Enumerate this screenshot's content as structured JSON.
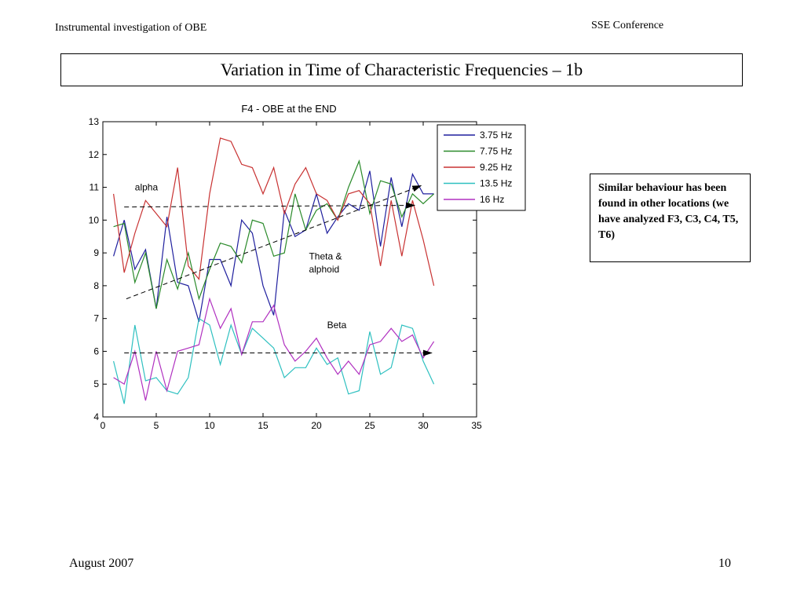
{
  "header": {
    "left": "Instrumental investigation of OBE",
    "right": "SSE Conference"
  },
  "slide_title": "Variation in Time of Characteristic Frequencies – 1b",
  "note": "Similar behaviour has been found in other locations (we have analyzed F3, C3, C4, T5, T6)",
  "footer": {
    "date": "August 2007",
    "page": "10"
  },
  "chart_data": {
    "type": "line",
    "title": "F4 - OBE at the END",
    "xlabel": "",
    "ylabel": "",
    "xlim": [
      0,
      35
    ],
    "ylim": [
      4,
      13
    ],
    "xticks": [
      0,
      5,
      10,
      15,
      20,
      25,
      30,
      35
    ],
    "yticks": [
      4,
      5,
      6,
      7,
      8,
      9,
      10,
      11,
      12,
      13
    ],
    "grid": false,
    "legend": "top-right",
    "x": [
      1,
      2,
      3,
      4,
      5,
      6,
      7,
      8,
      9,
      10,
      11,
      12,
      13,
      14,
      15,
      16,
      17,
      18,
      19,
      20,
      21,
      22,
      23,
      24,
      25,
      26,
      27,
      28,
      29,
      30,
      31
    ],
    "series": [
      {
        "name": "3.75 Hz",
        "color": "#1f1f9e",
        "values": [
          8.9,
          10.0,
          8.5,
          9.1,
          7.3,
          10.1,
          8.1,
          8.0,
          6.9,
          8.8,
          8.8,
          8.0,
          10.0,
          9.6,
          8.0,
          7.1,
          10.3,
          9.5,
          9.7,
          10.8,
          9.6,
          10.1,
          10.5,
          10.3,
          11.5,
          9.2,
          11.3,
          9.8,
          11.4,
          10.8,
          10.8
        ]
      },
      {
        "name": "7.75 Hz",
        "color": "#2a8a2a",
        "values": [
          9.8,
          9.9,
          8.1,
          9.0,
          7.3,
          8.8,
          7.9,
          9.0,
          7.6,
          8.5,
          9.3,
          9.2,
          8.7,
          10.0,
          9.9,
          8.9,
          9.0,
          10.8,
          9.7,
          10.3,
          10.5,
          10.0,
          11.0,
          11.8,
          10.2,
          11.2,
          11.1,
          10.1,
          10.8,
          10.5,
          10.8
        ]
      },
      {
        "name": "9.25 Hz",
        "color": "#c83232",
        "values": [
          10.8,
          8.4,
          9.6,
          10.6,
          10.2,
          9.8,
          11.6,
          8.6,
          8.2,
          10.8,
          12.5,
          12.4,
          11.7,
          11.6,
          10.8,
          11.6,
          10.2,
          11.1,
          11.6,
          10.8,
          10.6,
          10.0,
          10.8,
          10.9,
          10.5,
          8.6,
          10.6,
          8.9,
          10.6,
          9.4,
          8.0
        ]
      },
      {
        "name": "13.5 Hz",
        "color": "#2ec0c0",
        "values": [
          5.7,
          4.4,
          6.8,
          5.1,
          5.2,
          4.8,
          4.7,
          5.2,
          7.0,
          6.8,
          5.6,
          6.8,
          5.9,
          6.7,
          6.4,
          6.1,
          5.2,
          5.5,
          5.5,
          6.1,
          5.6,
          5.8,
          4.7,
          4.8,
          6.6,
          5.3,
          5.5,
          6.8,
          6.7,
          5.7,
          5.0
        ]
      },
      {
        "name": "16 Hz",
        "color": "#b030c0",
        "values": [
          5.2,
          5.0,
          6.0,
          4.5,
          6.0,
          4.8,
          6.0,
          6.1,
          6.2,
          7.6,
          6.7,
          7.3,
          5.9,
          6.9,
          6.9,
          7.4,
          6.2,
          5.7,
          6.0,
          6.4,
          5.8,
          5.3,
          5.7,
          5.3,
          6.2,
          6.3,
          6.7,
          6.3,
          6.5,
          5.8,
          6.3
        ]
      }
    ],
    "annotations": [
      {
        "text": "alpha",
        "x": 3,
        "y": 10.9
      },
      {
        "text": "Theta &",
        "x": 19.3,
        "y": 8.8
      },
      {
        "text": "alphoid",
        "x": 19.3,
        "y": 8.4
      },
      {
        "text": "Beta",
        "x": 21,
        "y": 6.7
      }
    ],
    "arrows": [
      {
        "from": [
          2,
          10.4
        ],
        "to": [
          29.2,
          10.45
        ]
      },
      {
        "from": [
          2.2,
          7.6
        ],
        "to": [
          29.8,
          11.05
        ]
      },
      {
        "from": [
          2,
          5.95
        ],
        "to": [
          30.8,
          5.95
        ]
      }
    ]
  }
}
